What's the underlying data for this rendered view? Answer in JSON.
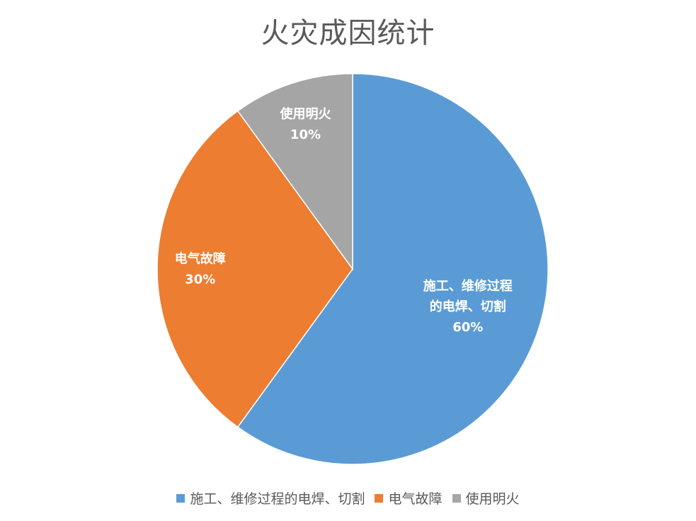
{
  "chart_data": {
    "type": "pie",
    "title": "火灾成因统计",
    "slices": [
      {
        "label_lines": [
          "施工、维修过程",
          "的电焊、切割"
        ],
        "legend": "施工、维修过程的电焊、切割",
        "value": 60,
        "percent_label": "60%",
        "color": "#5B9BD5"
      },
      {
        "label_lines": [
          "电气故障"
        ],
        "legend": "电气故障",
        "value": 30,
        "percent_label": "30%",
        "color": "#ED7D31"
      },
      {
        "label_lines": [
          "使用明火"
        ],
        "legend": "使用明火",
        "value": 10,
        "percent_label": "10%",
        "color": "#A5A5A5"
      }
    ],
    "legend_position": "bottom",
    "start_angle": "12 o'clock",
    "direction": "clockwise"
  }
}
